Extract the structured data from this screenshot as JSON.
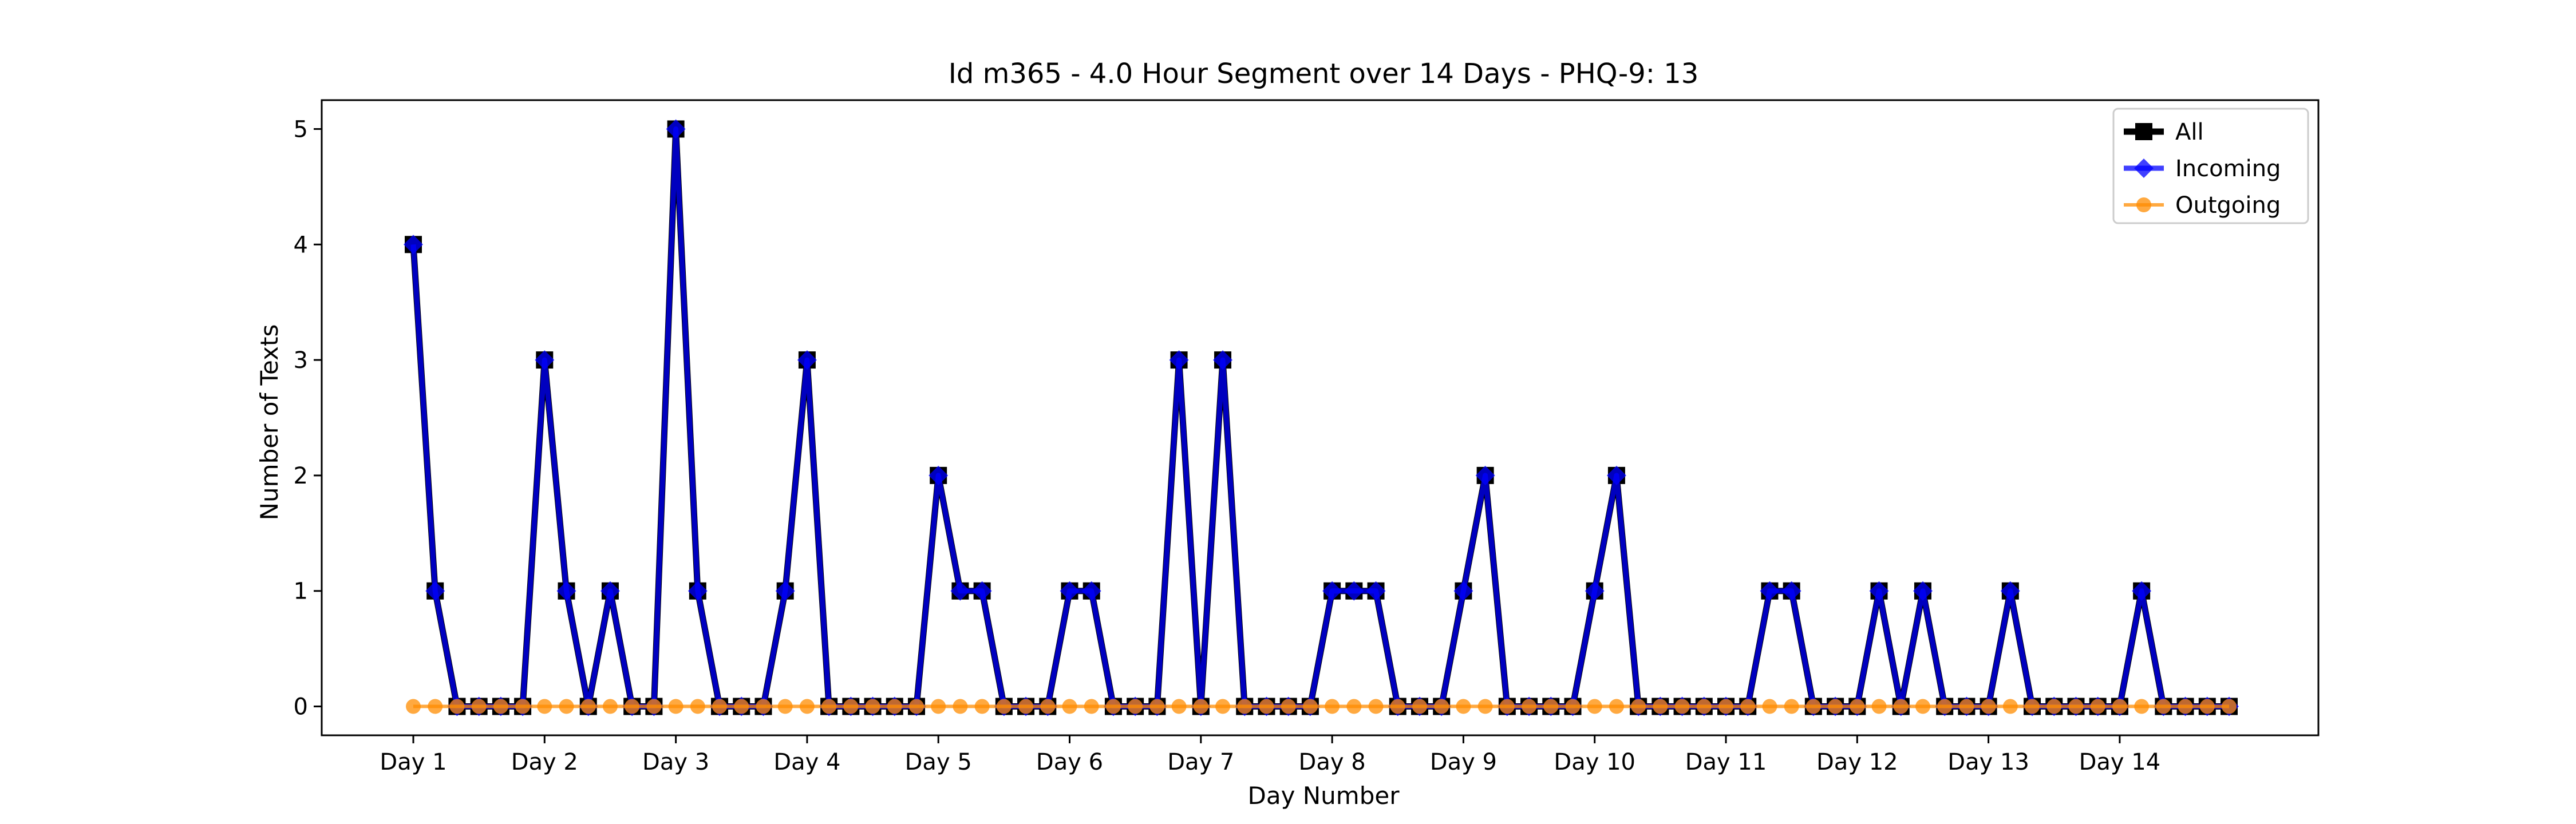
{
  "chart_data": {
    "type": "line",
    "title": "Id m365 - 4.0 Hour Segment over 14 Days - PHQ-9: 13",
    "xlabel": "Day Number",
    "ylabel": "Number of Texts",
    "x_tick_labels": [
      "Day 1",
      "Day 2",
      "Day 3",
      "Day 4",
      "Day 5",
      "Day 6",
      "Day 7",
      "Day 8",
      "Day 9",
      "Day 10",
      "Day 11",
      "Day 12",
      "Day 13",
      "Day 14"
    ],
    "y_ticks": [
      "0",
      "1",
      "2",
      "3",
      "4",
      "5"
    ],
    "ylim": [
      -0.25,
      5.25
    ],
    "points_per_day": 6,
    "grid": false,
    "legend_position": "top-right",
    "series": [
      {
        "name": "All",
        "color": "#000000",
        "marker": "square",
        "values": [
          4,
          1,
          0,
          0,
          0,
          0,
          3,
          1,
          0,
          1,
          0,
          0,
          5,
          1,
          0,
          0,
          0,
          1,
          3,
          0,
          0,
          0,
          0,
          0,
          2,
          1,
          1,
          0,
          0,
          0,
          1,
          1,
          0,
          0,
          0,
          3,
          0,
          3,
          0,
          0,
          0,
          0,
          1,
          1,
          1,
          0,
          0,
          0,
          1,
          2,
          0,
          0,
          0,
          0,
          1,
          2,
          0,
          0,
          0,
          0,
          0,
          0,
          1,
          1,
          0,
          0,
          0,
          1,
          0,
          1,
          0,
          0,
          0,
          1,
          0,
          0,
          0,
          0,
          0,
          1,
          0,
          0,
          0,
          0
        ]
      },
      {
        "name": "Incoming",
        "color": "#0000ff",
        "marker": "diamond",
        "values": [
          4,
          1,
          0,
          0,
          0,
          0,
          3,
          1,
          0,
          1,
          0,
          0,
          5,
          1,
          0,
          0,
          0,
          1,
          3,
          0,
          0,
          0,
          0,
          0,
          2,
          1,
          1,
          0,
          0,
          0,
          1,
          1,
          0,
          0,
          0,
          3,
          0,
          3,
          0,
          0,
          0,
          0,
          1,
          1,
          1,
          0,
          0,
          0,
          1,
          2,
          0,
          0,
          0,
          0,
          1,
          2,
          0,
          0,
          0,
          0,
          0,
          0,
          1,
          1,
          0,
          0,
          0,
          1,
          0,
          1,
          0,
          0,
          0,
          1,
          0,
          0,
          0,
          0,
          0,
          1,
          0,
          0,
          0,
          0
        ]
      },
      {
        "name": "Outgoing",
        "color": "#ff8c00",
        "marker": "circle",
        "values": [
          0,
          0,
          0,
          0,
          0,
          0,
          0,
          0,
          0,
          0,
          0,
          0,
          0,
          0,
          0,
          0,
          0,
          0,
          0,
          0,
          0,
          0,
          0,
          0,
          0,
          0,
          0,
          0,
          0,
          0,
          0,
          0,
          0,
          0,
          0,
          0,
          0,
          0,
          0,
          0,
          0,
          0,
          0,
          0,
          0,
          0,
          0,
          0,
          0,
          0,
          0,
          0,
          0,
          0,
          0,
          0,
          0,
          0,
          0,
          0,
          0,
          0,
          0,
          0,
          0,
          0,
          0,
          0,
          0,
          0,
          0,
          0,
          0,
          0,
          0,
          0,
          0,
          0,
          0,
          0,
          0,
          0,
          0,
          0
        ]
      }
    ]
  }
}
